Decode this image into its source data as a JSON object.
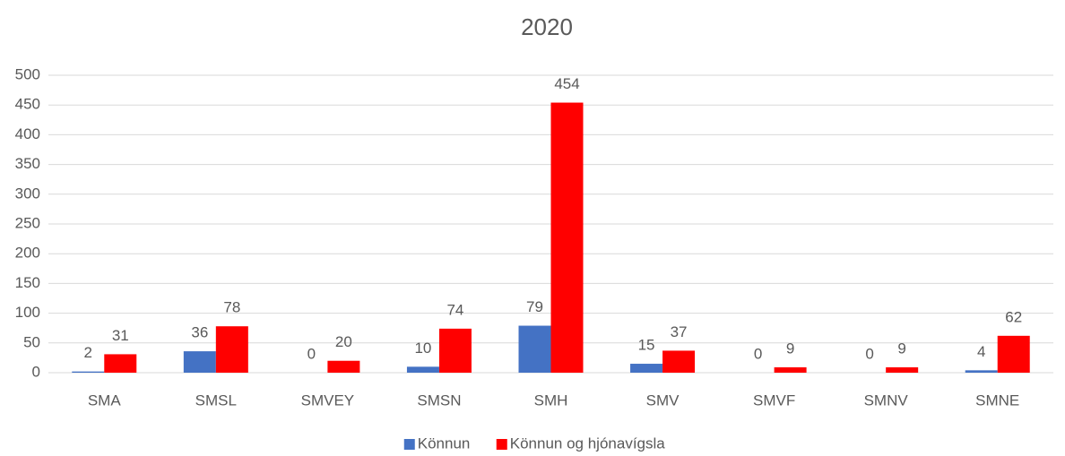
{
  "chart_data": {
    "type": "bar",
    "title": "2020",
    "categories": [
      "SMA",
      "SMSL",
      "SMVEY",
      "SMSN",
      "SMH",
      "SMV",
      "SMVF",
      "SMNV",
      "SMNE"
    ],
    "series": [
      {
        "name": "Könnun",
        "color": "#4472c4",
        "values": [
          2,
          36,
          0,
          10,
          79,
          15,
          0,
          0,
          4
        ]
      },
      {
        "name": "Könnun og hjónavígsla",
        "color": "#ff0000",
        "values": [
          31,
          78,
          20,
          74,
          454,
          37,
          9,
          9,
          62
        ]
      }
    ],
    "ylim": [
      0,
      500
    ],
    "yticks": [
      0,
      50,
      100,
      150,
      200,
      250,
      300,
      350,
      400,
      450,
      500
    ],
    "grid": true,
    "legend": "bottom"
  }
}
